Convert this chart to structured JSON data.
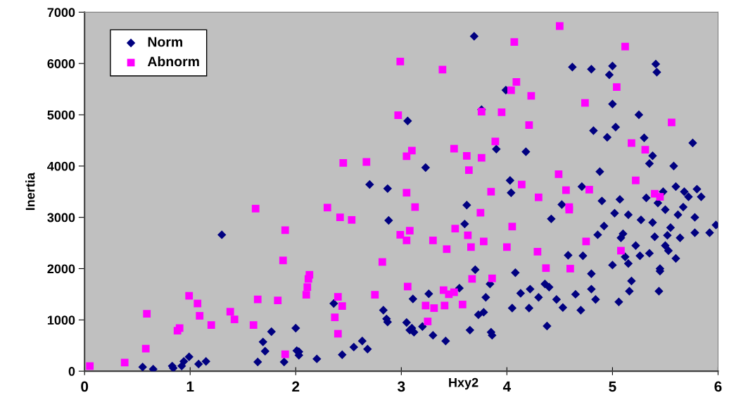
{
  "chart_data": {
    "type": "scatter",
    "xlabel": "Hxy2",
    "ylabel": "Inertia",
    "xlim": [
      0,
      6
    ],
    "xticks": [
      0,
      1,
      2,
      3,
      4,
      5,
      6
    ],
    "ylim": [
      0,
      7000
    ],
    "yticks": [
      0,
      1000,
      2000,
      3000,
      4000,
      5000,
      6000,
      7000
    ],
    "grid": false,
    "legend": "top left",
    "series": [
      {
        "name": "Norm",
        "color": "#000080",
        "marker": "diamond",
        "x": [
          0.55,
          0.65,
          0.83,
          0.84,
          0.92,
          0.94,
          0.99,
          1.08,
          1.15,
          1.3,
          1.64,
          1.69,
          1.71,
          1.77,
          1.89,
          2.0,
          2.01,
          2.03,
          2.03,
          2.2,
          2.36,
          2.44,
          2.55,
          2.63,
          2.68,
          2.7,
          2.83,
          2.86,
          2.87,
          2.87,
          2.88,
          3.05,
          3.06,
          3.08,
          3.1,
          3.11,
          3.12,
          3.2,
          3.23,
          3.26,
          3.3,
          3.42,
          3.55,
          3.6,
          3.62,
          3.65,
          3.69,
          3.7,
          3.73,
          3.76,
          3.78,
          3.8,
          3.84,
          3.85,
          3.86,
          3.9,
          3.99,
          4.03,
          4.04,
          4.05,
          4.08,
          4.13,
          4.18,
          4.21,
          4.22,
          4.3,
          4.36,
          4.38,
          4.4,
          4.42,
          4.47,
          4.52,
          4.53,
          4.58,
          4.62,
          4.65,
          4.7,
          4.71,
          4.8,
          4.8,
          4.8,
          4.82,
          4.84,
          4.86,
          4.88,
          4.9,
          4.92,
          4.95,
          4.97,
          5.0,
          5.0,
          5.02,
          5.03,
          5.06,
          5.07,
          5.1,
          5.12,
          5.15,
          5.16,
          5.18,
          5.22,
          5.26,
          5.3,
          5.32,
          5.35,
          5.38,
          5.4,
          5.41,
          5.42,
          5.43,
          5.44,
          5.45,
          5.48,
          5.5,
          5.53,
          5.55,
          5.58,
          5.6,
          5.62,
          5.64,
          5.68,
          5.72,
          5.76,
          5.78,
          5.8,
          5.84,
          5.92,
          5.98,
          5.6,
          5.52,
          5.38,
          5.27,
          5.25,
          5.0,
          4.72,
          5.08,
          5.15,
          5.5,
          5.67,
          5.78,
          5.45,
          5.35
        ],
        "values": [
          80,
          40,
          100,
          60,
          100,
          190,
          280,
          140,
          190,
          2660,
          180,
          570,
          390,
          770,
          180,
          840,
          400,
          310,
          380,
          240,
          1320,
          320,
          470,
          590,
          430,
          3640,
          1190,
          1020,
          960,
          3560,
          2940,
          950,
          4880,
          800,
          840,
          1410,
          760,
          870,
          3970,
          1510,
          700,
          590,
          1620,
          2870,
          3240,
          800,
          6530,
          1980,
          1100,
          5100,
          1150,
          1440,
          1700,
          760,
          700,
          4330,
          5480,
          3720,
          3480,
          1230,
          1920,
          1520,
          4280,
          1230,
          1600,
          1440,
          1700,
          880,
          1640,
          2970,
          1400,
          3250,
          1240,
          2260,
          5930,
          1500,
          1190,
          3600,
          1600,
          1900,
          5890,
          4690,
          1400,
          2660,
          3890,
          3320,
          2830,
          4560,
          5780,
          5210,
          2070,
          3080,
          4760,
          1350,
          3350,
          2680,
          2230,
          2100,
          1560,
          1760,
          2450,
          2250,
          4550,
          3380,
          4050,
          2900,
          2620,
          5990,
          5830,
          3280,
          1560,
          1950,
          3500,
          3150,
          2350,
          2800,
          4000,
          2200,
          3050,
          2600,
          3500,
          3400,
          4450,
          3000,
          3550,
          3400,
          2700,
          2850,
          3600,
          2650,
          4200,
          2950,
          5000,
          5950,
          2250,
          2600,
          3050,
          2450,
          3200,
          2700,
          2000,
          2300
        ]
      },
      {
        "name": "Abnorm",
        "color": "#ff00ff",
        "marker": "square",
        "x": [
          0.05,
          0.38,
          0.58,
          0.59,
          0.88,
          0.9,
          0.99,
          1.07,
          1.09,
          1.2,
          1.38,
          1.42,
          1.6,
          1.62,
          1.64,
          1.83,
          1.88,
          1.9,
          1.9,
          2.1,
          2.11,
          2.12,
          2.13,
          2.3,
          2.37,
          2.4,
          2.4,
          2.42,
          2.44,
          2.45,
          2.53,
          2.67,
          2.75,
          2.82,
          2.97,
          2.99,
          2.99,
          3.05,
          3.05,
          3.05,
          3.06,
          3.08,
          3.1,
          3.13,
          3.23,
          3.25,
          3.3,
          3.31,
          3.39,
          3.4,
          3.41,
          3.43,
          3.45,
          3.5,
          3.5,
          3.51,
          3.58,
          3.62,
          3.63,
          3.64,
          3.66,
          3.67,
          3.75,
          3.76,
          3.76,
          3.78,
          3.85,
          3.86,
          3.89,
          3.95,
          4.0,
          4.04,
          4.05,
          4.07,
          4.09,
          4.14,
          4.21,
          4.23,
          4.29,
          4.3,
          4.37,
          4.49,
          4.5,
          4.56,
          4.59,
          4.59,
          4.6,
          4.74,
          4.75,
          4.78,
          5.04,
          5.08,
          5.12,
          5.18,
          5.22,
          5.31,
          5.45,
          5.4,
          5.56
        ],
        "values": [
          100,
          170,
          440,
          1120,
          790,
          840,
          1470,
          1320,
          1080,
          900,
          1160,
          1010,
          900,
          3170,
          1400,
          1380,
          2160,
          2750,
          330,
          1490,
          1640,
          1800,
          1880,
          3190,
          1050,
          1450,
          730,
          3000,
          1270,
          4060,
          2950,
          4080,
          1490,
          2130,
          4990,
          6040,
          2660,
          3480,
          4190,
          2550,
          1650,
          2740,
          4300,
          3200,
          1280,
          970,
          2550,
          1230,
          5880,
          1580,
          1280,
          2380,
          1500,
          4340,
          1540,
          2780,
          1300,
          4200,
          2650,
          3920,
          2420,
          1800,
          3090,
          4160,
          5060,
          2530,
          3500,
          1810,
          4480,
          5050,
          2420,
          5480,
          2820,
          6420,
          5640,
          3640,
          4800,
          5370,
          2330,
          3390,
          2010,
          3840,
          6730,
          3530,
          3200,
          3150,
          2000,
          5230,
          2530,
          3540,
          5540,
          2350,
          6330,
          4450,
          3720,
          4320,
          3400,
          3460,
          4850
        ]
      }
    ]
  }
}
